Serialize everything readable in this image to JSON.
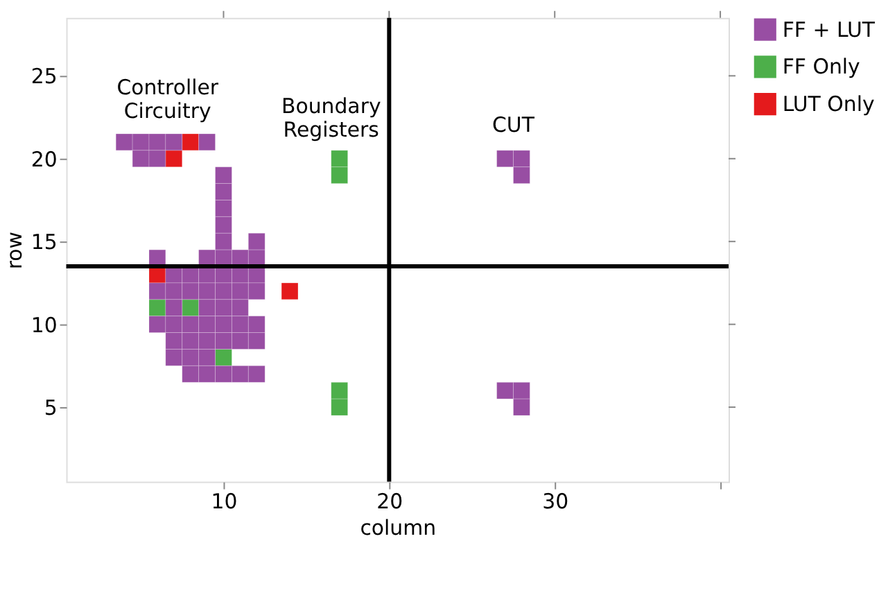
{
  "chart_data": {
    "type": "scatter",
    "xlabel": "column",
    "ylabel": "row",
    "xlim": [
      0.5,
      40.5
    ],
    "ylim": [
      0.5,
      28.5
    ],
    "xticks": [
      10,
      20,
      30,
      {
        "value": 40,
        "label": null
      }
    ],
    "yticks": [
      5,
      10,
      15,
      20,
      25
    ],
    "grid": false,
    "marker": "square",
    "legend": "right",
    "series": [
      {
        "name": "LUT Only",
        "color": "#e41a1c",
        "x": [
          8,
          7,
          6,
          14
        ],
        "values": [
          21,
          20,
          13,
          12
        ]
      },
      {
        "name": "FF Only",
        "color": "#4daf4a",
        "x": [
          17,
          17,
          6,
          8,
          10,
          17,
          17
        ],
        "values": [
          20,
          19,
          11,
          11,
          8,
          6,
          5
        ]
      },
      {
        "name": "FF + LUT",
        "color": "#984ea3",
        "x": [
          4,
          5,
          6,
          7,
          9,
          5,
          6,
          27,
          28,
          10,
          28,
          10,
          10,
          10,
          10,
          12,
          6,
          9,
          10,
          11,
          12,
          7,
          8,
          9,
          10,
          11,
          12,
          6,
          7,
          8,
          9,
          10,
          11,
          12,
          7,
          9,
          10,
          11,
          6,
          7,
          8,
          9,
          10,
          11,
          12,
          7,
          8,
          9,
          10,
          11,
          12,
          7,
          8,
          9,
          8,
          9,
          10,
          11,
          12,
          27,
          28,
          28
        ],
        "values": [
          21,
          21,
          21,
          21,
          21,
          20,
          20,
          20,
          20,
          19,
          19,
          18,
          17,
          16,
          15,
          15,
          14,
          14,
          14,
          14,
          14,
          13,
          13,
          13,
          13,
          13,
          13,
          12,
          12,
          12,
          12,
          12,
          12,
          12,
          11,
          11,
          11,
          11,
          10,
          10,
          10,
          10,
          10,
          10,
          10,
          9,
          9,
          9,
          9,
          9,
          9,
          8,
          8,
          8,
          7,
          7,
          7,
          7,
          7,
          6,
          6,
          5
        ]
      }
    ],
    "ref_lines": [
      {
        "axis": "x",
        "value": 20,
        "color": "#000000"
      },
      {
        "axis": "y",
        "value": 13.5,
        "color": "#000000"
      }
    ],
    "annotations": [
      "Controller Circuitry",
      "Boundary Registers",
      "CUT"
    ]
  }
}
